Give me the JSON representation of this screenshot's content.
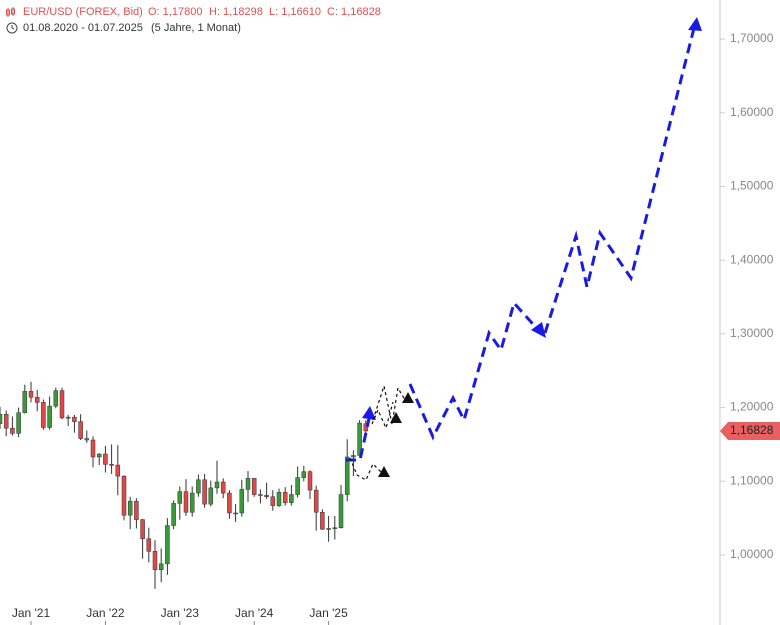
{
  "header": {
    "symbol": "EUR/USD (FOREX, Bid)",
    "ohlc": [
      "O: 1,17800",
      "H: 1,18298",
      "L: 1,16610",
      "C: 1,16828"
    ],
    "range": "01.08.2020 - 01.07.2025",
    "period": "(5 Jahre, 1 Monat)"
  },
  "chart_data": {
    "type": "candlestick",
    "categories": [
      null,
      null,
      null,
      null,
      null,
      "Jan '21",
      null,
      null,
      null,
      null,
      null,
      null,
      null,
      null,
      null,
      null,
      null,
      "Jan '22",
      null,
      null,
      null,
      null,
      null,
      null,
      null,
      null,
      null,
      null,
      null,
      "Jan '23",
      null,
      null,
      null,
      null,
      null,
      null,
      null,
      null,
      null,
      null,
      null,
      "Jan '24",
      null,
      null,
      null,
      null,
      null,
      null,
      null,
      null,
      null,
      null,
      null,
      "Jan '25",
      null,
      null,
      null,
      null,
      null,
      null
    ],
    "open": [
      1.178,
      1.191,
      1.172,
      1.165,
      1.193,
      1.222,
      1.214,
      1.207,
      1.173,
      1.202,
      1.223,
      1.186,
      1.187,
      1.181,
      1.158,
      1.156,
      1.133,
      1.137,
      1.123,
      1.122,
      1.107,
      1.054,
      1.073,
      1.048,
      1.022,
      1.005,
      0.98,
      0.988,
      1.04,
      1.07,
      1.086,
      1.058,
      1.084,
      1.102,
      1.069,
      1.091,
      1.099,
      1.084,
      1.057,
      1.057,
      1.089,
      1.104,
      1.082,
      1.081,
      1.079,
      1.067,
      1.085,
      1.071,
      1.082,
      1.105,
      1.113,
      1.088,
      1.058,
      1.035,
      1.036,
      1.037,
      1.082,
      1.133,
      1.135,
      1.178
    ],
    "high": [
      1.201,
      1.196,
      1.188,
      1.2,
      1.231,
      1.235,
      1.224,
      1.211,
      1.215,
      1.227,
      1.227,
      1.19,
      1.19,
      1.191,
      1.169,
      1.161,
      1.138,
      1.148,
      1.15,
      1.149,
      1.108,
      1.079,
      1.077,
      1.049,
      1.037,
      1.02,
      1.009,
      1.05,
      1.074,
      1.093,
      1.103,
      1.093,
      1.109,
      1.11,
      1.101,
      1.128,
      1.104,
      1.088,
      1.069,
      1.102,
      1.114,
      1.104,
      1.089,
      1.098,
      1.088,
      1.09,
      1.092,
      1.095,
      1.12,
      1.121,
      1.115,
      1.094,
      1.062,
      1.053,
      1.053,
      1.095,
      1.157,
      1.142,
      1.183,
      1.18298
    ],
    "low": [
      1.171,
      1.161,
      1.162,
      1.16,
      1.192,
      1.207,
      1.195,
      1.17,
      1.17,
      1.199,
      1.184,
      1.175,
      1.166,
      1.156,
      1.152,
      1.119,
      1.122,
      1.112,
      1.11,
      1.081,
      1.047,
      1.035,
      1.036,
      0.995,
      0.99,
      0.954,
      0.963,
      0.973,
      1.035,
      1.048,
      1.053,
      1.052,
      1.079,
      1.064,
      1.066,
      1.083,
      1.077,
      1.049,
      1.045,
      1.052,
      1.072,
      1.079,
      1.07,
      1.076,
      1.06,
      1.065,
      1.067,
      1.067,
      1.078,
      1.1,
      1.076,
      1.033,
      1.034,
      1.018,
      1.021,
      1.036,
      1.073,
      1.107,
      1.135,
      1.1661
    ],
    "close": [
      1.191,
      1.172,
      1.165,
      1.193,
      1.222,
      1.214,
      1.207,
      1.173,
      1.202,
      1.223,
      1.186,
      1.187,
      1.181,
      1.158,
      1.156,
      1.133,
      1.137,
      1.123,
      1.122,
      1.107,
      1.054,
      1.073,
      1.048,
      1.022,
      1.005,
      0.98,
      0.988,
      1.04,
      1.07,
      1.086,
      1.058,
      1.084,
      1.102,
      1.069,
      1.091,
      1.099,
      1.084,
      1.057,
      1.057,
      1.089,
      1.104,
      1.082,
      1.081,
      1.079,
      1.067,
      1.085,
      1.071,
      1.082,
      1.105,
      1.113,
      1.088,
      1.058,
      1.035,
      1.036,
      1.037,
      1.082,
      1.133,
      1.135,
      1.179,
      1.16828
    ],
    "up_color": "#3a9a3a",
    "down_color": "#e04848",
    "ylim": [
      0.905,
      1.753
    ],
    "yticks": [
      {
        "value": 1.0,
        "label": "1,00000"
      },
      {
        "value": 1.1,
        "label": "1,10000"
      },
      {
        "value": 1.2,
        "label": "1,20000"
      },
      {
        "value": 1.3,
        "label": "1,30000"
      },
      {
        "value": 1.4,
        "label": "1,40000"
      },
      {
        "value": 1.5,
        "label": "1,50000"
      },
      {
        "value": 1.6,
        "label": "1,60000"
      },
      {
        "value": 1.7,
        "label": "1,70000"
      }
    ],
    "last_price": {
      "value": 1.16828,
      "label": "1,16828"
    }
  }
}
